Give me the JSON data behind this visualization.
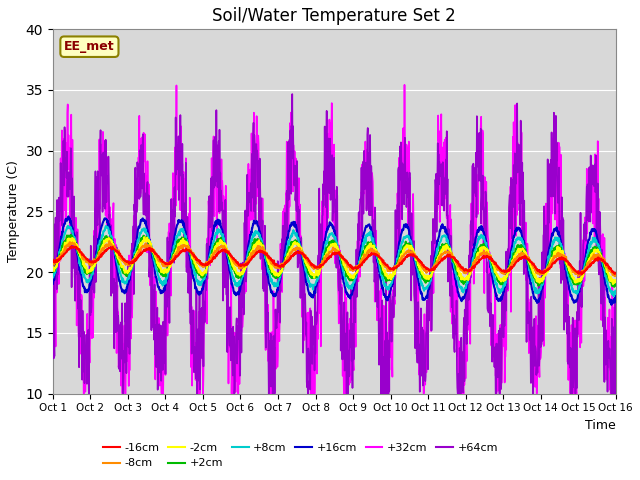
{
  "title": "Soil/Water Temperature Set 2",
  "xlabel": "Time",
  "ylabel": "Temperature (C)",
  "ylim": [
    10,
    40
  ],
  "yticks": [
    10,
    15,
    20,
    25,
    30,
    35,
    40
  ],
  "x_labels": [
    "Oct 1",
    "Oct 2",
    "Oct 3",
    "Oct 4",
    "Oct 5",
    "Oct 6",
    "Oct 7",
    "Oct 8",
    "Oct 9",
    "Oct 10",
    "Oct 11",
    "Oct 12",
    "Oct 13",
    "Oct 14",
    "Oct 15",
    "Oct 16"
  ],
  "annotation_text": "EE_met",
  "annotation_color": "#8B0000",
  "annotation_bg": "#FFFFC0",
  "annotation_border": "#8B8000",
  "fig_bg": "#FFFFFF",
  "plot_bg": "#D8D8D8",
  "grid_color": "#FFFFFF",
  "series": {
    "-16cm": {
      "color": "#FF0000",
      "lw": 1.5,
      "zorder": 5
    },
    "-8cm": {
      "color": "#FF8C00",
      "lw": 1.5,
      "zorder": 5
    },
    "-2cm": {
      "color": "#FFFF00",
      "lw": 1.5,
      "zorder": 5
    },
    "+2cm": {
      "color": "#00BB00",
      "lw": 1.5,
      "zorder": 5
    },
    "+8cm": {
      "color": "#00CCCC",
      "lw": 1.5,
      "zorder": 5
    },
    "+16cm": {
      "color": "#0000CC",
      "lw": 1.5,
      "zorder": 5
    },
    "+32cm": {
      "color": "#FF00FF",
      "lw": 1.2,
      "zorder": 4
    },
    "+64cm": {
      "color": "#9900CC",
      "lw": 1.2,
      "zorder": 4
    }
  },
  "legend_order": [
    "-16cm",
    "-8cm",
    "-2cm",
    "+2cm",
    "+8cm",
    "+16cm",
    "+32cm",
    "+64cm"
  ]
}
